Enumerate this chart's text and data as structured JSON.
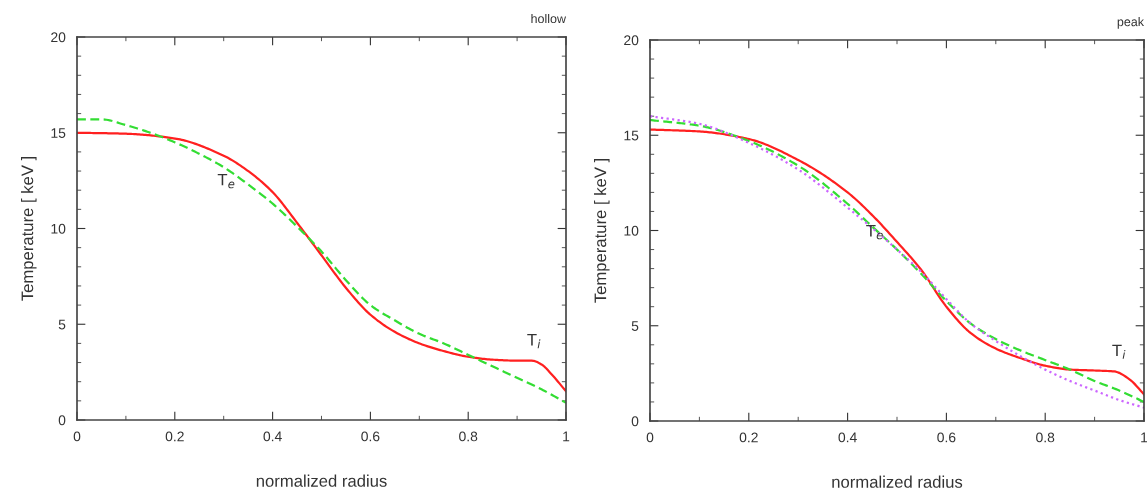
{
  "chart_data": [
    {
      "type": "line",
      "title": "hollow",
      "xlabel": "normalized radius",
      "ylabel": "Temperature [ keV ]",
      "xlim": [
        0,
        1
      ],
      "ylim": [
        0,
        20
      ],
      "xticks": [
        0,
        0.2,
        0.4,
        0.6,
        0.8,
        1
      ],
      "yticks": [
        0,
        5,
        10,
        15,
        20
      ],
      "grid": false,
      "legend": false,
      "series": [
        {
          "name": "T$_{i}$",
          "color": "#ff2020",
          "line_style": "solid",
          "x": [
            0,
            0.1,
            0.2,
            0.3,
            0.35,
            0.4,
            0.45,
            0.5,
            0.55,
            0.6,
            0.65,
            0.7,
            0.75,
            0.8,
            0.85,
            0.9,
            0.93,
            0.95,
            0.97,
            1.0
          ],
          "values": [
            15,
            14.95,
            14.7,
            13.8,
            13.0,
            11.9,
            10.3,
            8.6,
            6.9,
            5.5,
            4.6,
            4.0,
            3.6,
            3.3,
            3.15,
            3.1,
            3.1,
            2.9,
            2.4,
            1.5
          ]
        },
        {
          "name": "T$_{e}$",
          "color": "#33dd33",
          "line_style": "dashed",
          "x": [
            0,
            0.05,
            0.1,
            0.15,
            0.2,
            0.25,
            0.3,
            0.35,
            0.4,
            0.45,
            0.5,
            0.55,
            0.6,
            0.65,
            0.7,
            0.75,
            0.8,
            0.85,
            0.9,
            0.95,
            1.0
          ],
          "values": [
            15.7,
            15.7,
            15.4,
            15.0,
            14.5,
            13.9,
            13.2,
            12.3,
            11.3,
            10.1,
            8.8,
            7.3,
            6.0,
            5.2,
            4.5,
            4.0,
            3.4,
            2.8,
            2.2,
            1.6,
            0.9
          ]
        }
      ]
    },
    {
      "type": "line",
      "title": "peak",
      "xlabel": "normalized radius",
      "ylabel": "Temperature [ keV ]",
      "xlim": [
        0,
        1
      ],
      "ylim": [
        0,
        20
      ],
      "xticks": [
        0,
        0.2,
        0.4,
        0.6,
        0.8,
        1
      ],
      "yticks": [
        0,
        5,
        10,
        15,
        20
      ],
      "grid": false,
      "legend": false,
      "series": [
        {
          "name": "T$_{i}$",
          "color": "#ff2020",
          "line_style": "solid",
          "x": [
            0,
            0.1,
            0.2,
            0.3,
            0.4,
            0.45,
            0.5,
            0.55,
            0.6,
            0.65,
            0.7,
            0.75,
            0.8,
            0.85,
            0.9,
            0.94,
            0.97,
            1.0
          ],
          "values": [
            15.3,
            15.2,
            14.8,
            13.7,
            12.0,
            10.8,
            9.4,
            7.9,
            6.0,
            4.6,
            3.8,
            3.3,
            2.9,
            2.7,
            2.65,
            2.6,
            2.2,
            1.4
          ]
        },
        {
          "name": "T$_{e}$",
          "color": "#33dd33",
          "line_style": "dashed",
          "x": [
            0,
            0.1,
            0.2,
            0.3,
            0.4,
            0.45,
            0.5,
            0.55,
            0.6,
            0.65,
            0.7,
            0.75,
            0.8,
            0.85,
            0.9,
            0.95,
            1.0
          ],
          "values": [
            15.8,
            15.5,
            14.7,
            13.4,
            11.4,
            10.2,
            9.0,
            7.7,
            6.3,
            5.1,
            4.3,
            3.7,
            3.2,
            2.7,
            2.1,
            1.6,
            1.0
          ]
        },
        {
          "color": "#cc66ff",
          "line_style": "dotted",
          "x": [
            0,
            0.1,
            0.2,
            0.3,
            0.4,
            0.5,
            0.55,
            0.6,
            0.65,
            0.7,
            0.75,
            0.8,
            0.85,
            0.9,
            0.95,
            1.0
          ],
          "values": [
            16.0,
            15.6,
            14.6,
            13.2,
            11.2,
            9.0,
            7.8,
            6.4,
            5.1,
            4.2,
            3.4,
            2.7,
            2.1,
            1.6,
            1.1,
            0.7
          ]
        }
      ]
    }
  ]
}
